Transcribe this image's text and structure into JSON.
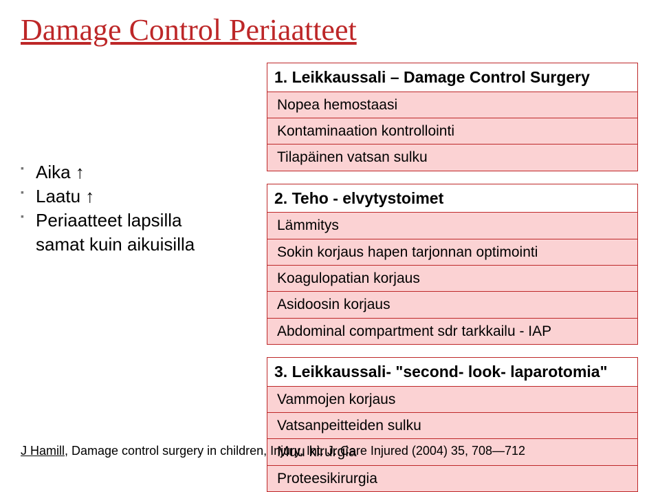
{
  "title": "Damage Control Periaatteet",
  "left": {
    "items": [
      "Aika ↑",
      "Laatu ↑",
      "Periaatteet lapsilla"
    ],
    "cont": "samat kuin aikuisilla"
  },
  "panels": [
    {
      "head": "1. Leikkaussali – Damage Control Surgery",
      "rows": [
        "Nopea hemostaasi",
        "Kontaminaation kontrollointi",
        "Tilapäinen vatsan sulku"
      ]
    },
    {
      "head": "2. Teho - elvytystoimet",
      "rows": [
        "Lämmitys",
        "Sokin korjaus hapen tarjonnan optimointi",
        "Koagulopatian korjaus",
        "Asidoosin korjaus",
        "Abdominal compartment sdr tarkkailu - IAP"
      ]
    },
    {
      "head": "3. Leikkaussali- \"second- look- laparotomia\"",
      "rows": [
        "Vammojen korjaus",
        "Vatsanpeitteiden sulku",
        "Muu kirurgia",
        "Proteesikirurgia"
      ]
    }
  ],
  "citation": {
    "author": "J Hamill,",
    "rest": " Damage control surgery in children, Injury, Int. J. Care Injured (2004) 35, 708―712"
  },
  "colors": {
    "accent": "#bd2728",
    "panel_fill": "#fbd2d3",
    "text": "#000000",
    "bg": "#ffffff"
  }
}
